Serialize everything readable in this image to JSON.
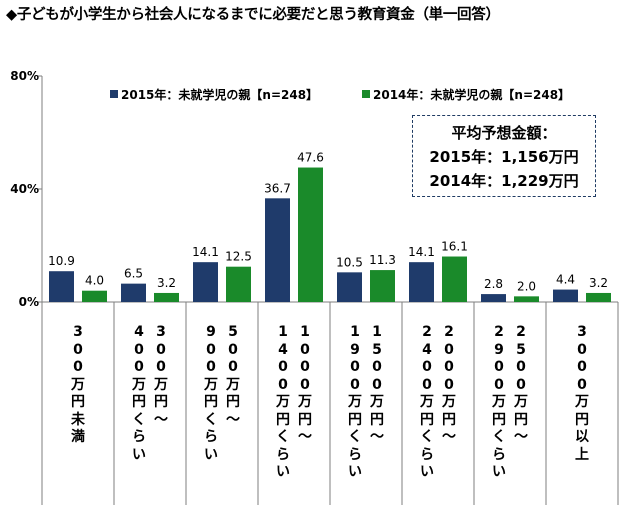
{
  "title": "◆子どもが小学生から社会人になるまでに必要だと思う教育資金（単一回答）",
  "callout": {
    "heading": "平均予想金額：",
    "line1": "2015年：1,156万円",
    "line2": "2014年：1,229万円"
  },
  "colors": {
    "series2015": "#1f3b6b",
    "series2014": "#1a8a2a",
    "grid": "#bfbfbf",
    "axis": "#7f7f7f"
  },
  "chart_data": {
    "type": "bar",
    "title": "◆子どもが小学生から社会人になるまでに必要だと思う教育資金（単一回答）",
    "categories": [
      "300万円未満",
      "300万円～400万円くらい",
      "500万円～900万円くらい",
      "1000万円～1400万円くらい",
      "1500万円～1900万円くらい",
      "2000万円～2400万円くらい",
      "2500万円～2900万円くらい",
      "3000万円以上"
    ],
    "category_columns": [
      [
        [
          "3",
          "0",
          "0",
          "万",
          "円",
          "未",
          "満"
        ]
      ],
      [
        [
          "3",
          "0",
          "0",
          "万",
          "円",
          "～"
        ],
        [
          "4",
          "0",
          "0",
          "万",
          "円",
          "く",
          "ら",
          "い"
        ]
      ],
      [
        [
          "5",
          "0",
          "0",
          "万",
          "円",
          "～"
        ],
        [
          "9",
          "0",
          "0",
          "万",
          "円",
          "く",
          "ら",
          "い"
        ]
      ],
      [
        [
          "1",
          "0",
          "0",
          "0",
          "万",
          "円",
          "～"
        ],
        [
          "1",
          "4",
          "0",
          "0",
          "万",
          "円",
          "く",
          "ら",
          "い"
        ]
      ],
      [
        [
          "1",
          "5",
          "0",
          "0",
          "万",
          "円",
          "～"
        ],
        [
          "1",
          "9",
          "0",
          "0",
          "万",
          "円",
          "く",
          "ら",
          "い"
        ]
      ],
      [
        [
          "2",
          "0",
          "0",
          "0",
          "万",
          "円",
          "～"
        ],
        [
          "2",
          "4",
          "0",
          "0",
          "万",
          "円",
          "く",
          "ら",
          "い"
        ]
      ],
      [
        [
          "2",
          "5",
          "0",
          "0",
          "万",
          "円",
          "～"
        ],
        [
          "2",
          "9",
          "0",
          "0",
          "万",
          "円",
          "く",
          "ら",
          "い"
        ]
      ],
      [
        [
          "3",
          "0",
          "0",
          "0",
          "万",
          "円",
          "以",
          "上"
        ]
      ]
    ],
    "series": [
      {
        "name": "2015年：未就学児の親【n=248】",
        "values": [
          10.9,
          6.5,
          14.1,
          36.7,
          10.5,
          14.1,
          2.8,
          4.4
        ]
      },
      {
        "name": "2014年：未就学児の親【n=248】",
        "values": [
          4.0,
          3.2,
          12.5,
          47.6,
          11.3,
          16.1,
          2.0,
          3.2
        ]
      }
    ],
    "ylim": [
      0,
      80
    ],
    "yticks": [
      "0%",
      "40%",
      "80%"
    ],
    "ytick_values": [
      0,
      40,
      80
    ],
    "grid": false,
    "legend_position": "top"
  }
}
